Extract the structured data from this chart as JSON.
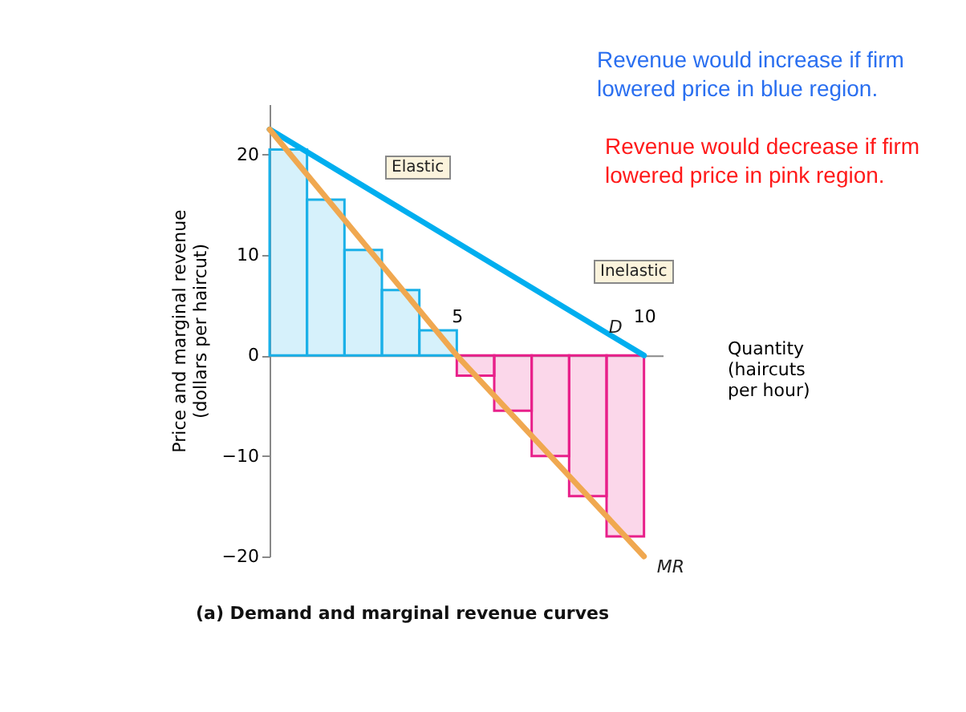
{
  "chart_data": {
    "type": "line",
    "xlabel": "Quantity (haircuts per hour)",
    "ylabel": "Price and marginal revenue (dollars per haircut)",
    "xlim": [
      0,
      10.5
    ],
    "ylim": [
      -20,
      25
    ],
    "xticks": [
      5,
      10
    ],
    "yticks": [
      -20,
      -10,
      0,
      10,
      20
    ],
    "grid": false,
    "legend": false,
    "marker": "none",
    "series": [
      {
        "type": "histogram",
        "bins": [
          0,
          1,
          2,
          3,
          4,
          5,
          6,
          7,
          8,
          9,
          10
        ],
        "values": [
          20.5,
          15.5,
          10.5,
          6.5,
          2.5,
          -2,
          -5.5,
          -10,
          -14,
          -18
        ],
        "colors": [
          "#1ab0e8",
          "#1ab0e8",
          "#1ab0e8",
          "#1ab0e8",
          "#1ab0e8",
          "#e8208a",
          "#e8208a",
          "#e8208a",
          "#e8208a",
          "#e8208a"
        ]
      },
      {
        "name": "D",
        "color": "#00aeef",
        "x": [
          0,
          10
        ],
        "values": [
          22.5,
          0
        ]
      },
      {
        "name": "MR",
        "color": "#f0a850",
        "x": [
          0,
          5,
          10
        ],
        "values": [
          22.5,
          0,
          -20
        ]
      }
    ],
    "annotations": [
      "Elastic",
      "Inelastic",
      "Revenue would increase if firm lowered price in blue region.",
      "Revenue would decrease if firm lowered price in pink region.",
      "(a) Demand and marginal revenue curves"
    ]
  }
}
